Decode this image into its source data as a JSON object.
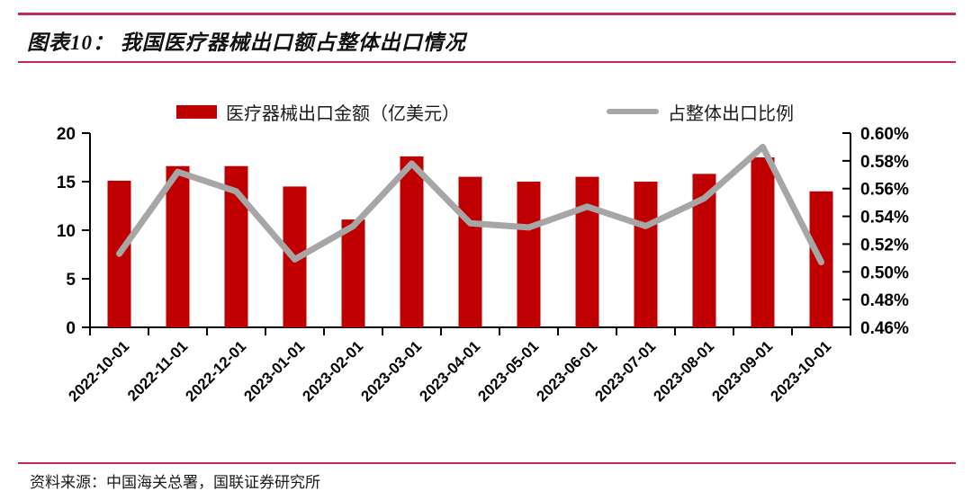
{
  "header": {
    "title": "图表10： 我国医疗器械出口额占整体出口情况"
  },
  "legend": {
    "bar_label": "医疗器械出口金额（亿美元）",
    "line_label": "占整体出口比例"
  },
  "colors": {
    "bar": "#c00000",
    "line": "#a6a6a6",
    "rule": "#c12b5b",
    "axis": "#000000"
  },
  "chart_data": {
    "type": "bar",
    "subtype": "bar+line combo, dual axis",
    "title": "我国医疗器械出口额占整体出口情况",
    "categories": [
      "2022-10-01",
      "2022-11-01",
      "2022-12-01",
      "2023-01-01",
      "2023-02-01",
      "2023-03-01",
      "2023-04-01",
      "2023-05-01",
      "2023-06-01",
      "2023-07-01",
      "2023-08-01",
      "2023-09-01",
      "2023-10-01"
    ],
    "series": [
      {
        "name": "医疗器械出口金额（亿美元）",
        "type": "bar",
        "axis": "left",
        "color": "#c00000",
        "values": [
          15.1,
          16.6,
          16.6,
          14.5,
          11.1,
          17.6,
          15.5,
          15.0,
          15.5,
          15.0,
          15.8,
          17.5,
          14.0
        ]
      },
      {
        "name": "占整体出口比例",
        "type": "line",
        "axis": "right",
        "color": "#a6a6a6",
        "unit": "%",
        "values": [
          0.513,
          0.572,
          0.558,
          0.509,
          0.533,
          0.578,
          0.535,
          0.532,
          0.547,
          0.533,
          0.553,
          0.59,
          0.507
        ]
      }
    ],
    "left_axis": {
      "min": 0,
      "max": 20,
      "ticks": [
        0,
        5,
        10,
        15,
        20
      ]
    },
    "right_axis": {
      "min": 0.46,
      "max": 0.6,
      "ticks": [
        0.46,
        0.48,
        0.5,
        0.52,
        0.54,
        0.56,
        0.58,
        0.6
      ],
      "format": "percent2"
    },
    "grid": false,
    "legend_position": "top"
  },
  "footer": {
    "source": "资料来源：中国海关总署，国联证券研究所"
  }
}
